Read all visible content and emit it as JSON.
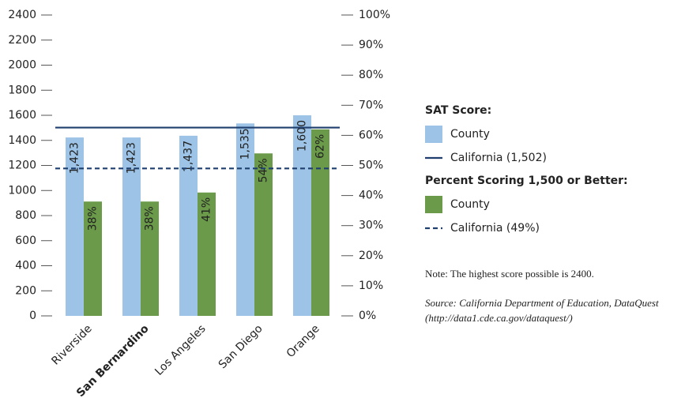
{
  "chart_data": {
    "type": "bar",
    "categories": [
      "Riverside",
      "San Bernardino",
      "Los Angeles",
      "San Diego",
      "Orange"
    ],
    "highlight_index": 1,
    "series": [
      {
        "name": "County",
        "legend_title": "SAT Score:",
        "color": "#9dc3e6",
        "axis": "y",
        "values": [
          1423,
          1423,
          1437,
          1535,
          1600
        ],
        "value_labels": [
          "1,423",
          "1,423",
          "1,437",
          "1,535",
          "1,600"
        ]
      },
      {
        "name": "County",
        "legend_title": "Percent Scoring 1,500 or Better:",
        "color": "#6a9a4a",
        "axis": "y2",
        "values": [
          38,
          38,
          41,
          54,
          62
        ],
        "value_labels": [
          "38%",
          "38%",
          "41%",
          "54%",
          "62%"
        ]
      }
    ],
    "reference_lines": [
      {
        "name": "California (1,502)",
        "value": 1502,
        "axis": "y",
        "color": "#1f3f6e",
        "dashed": false
      },
      {
        "name": "California (49%)",
        "value": 49,
        "axis": "y2",
        "color": "#1f3f6e",
        "dashed": true
      }
    ],
    "ylim": [
      0,
      2400
    ],
    "yticks": [
      0,
      200,
      400,
      600,
      800,
      1000,
      1200,
      1400,
      1600,
      1800,
      2000,
      2200,
      2400
    ],
    "y2lim": [
      0,
      100
    ],
    "y2ticks": [
      {
        "value": 0,
        "label": "0%"
      },
      {
        "value": 10,
        "label": "10%"
      },
      {
        "value": 20,
        "label": "20%"
      },
      {
        "value": 30,
        "label": "30%"
      },
      {
        "value": 40,
        "label": "40%"
      },
      {
        "value": 50,
        "label": "50%"
      },
      {
        "value": 60,
        "label": "60%"
      },
      {
        "value": 70,
        "label": "70%"
      },
      {
        "value": 80,
        "label": "80%"
      },
      {
        "value": 90,
        "label": "90%"
      },
      {
        "value": 100,
        "label": "100%"
      }
    ],
    "note": "Note: The highest score possible is 2400.",
    "source": [
      "Source: California Department of Education, DataQuest",
      "(http://data1.cde.ca.gov/dataquest/)"
    ]
  }
}
